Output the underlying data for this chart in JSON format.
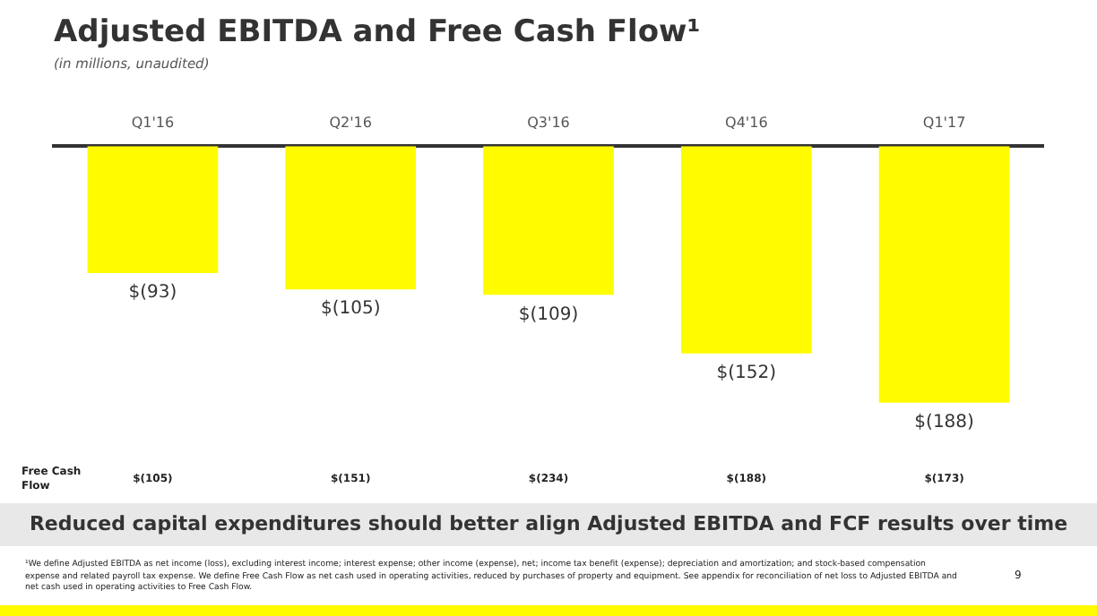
{
  "chart_data": {
    "type": "bar",
    "title": "Adjusted EBITDA and Free Cash Flow¹",
    "subtitle": "(in millions, unaudited)",
    "categories": [
      "Q1'16",
      "Q2'16",
      "Q3'16",
      "Q4'16",
      "Q1'17"
    ],
    "values": [
      -93,
      -105,
      -109,
      -152,
      -188
    ],
    "color": "#fffc00",
    "value_labels": [
      "$(93)",
      "$(105)",
      "$(109)",
      "$(152)",
      "$(188)"
    ],
    "grid": false,
    "legend": false,
    "tick_labels": "x",
    "annotations": [
      "Free Cash Flow",
      "$(105)",
      "$(151)",
      "$(234)",
      "$(188)",
      "$(173)",
      "Reduced capital expenditures should better align Adjusted EBITDA and FCF results over time",
      "¹We define Adjusted EBITDA as net income (loss), excluding interest income; interest expense; other income (expense), net; income tax benefit (expense); depreciation and amortization; and stock-based compensation expense and related payroll tax expense. We define Free Cash Flow as net cash used in operating activities, reduced by purchases of property and equipment. See appendix for reconciliation of net loss to Adjusted EBITDA and net cash used in operating activities to Free Cash Flow.",
      "9"
    ]
  }
}
